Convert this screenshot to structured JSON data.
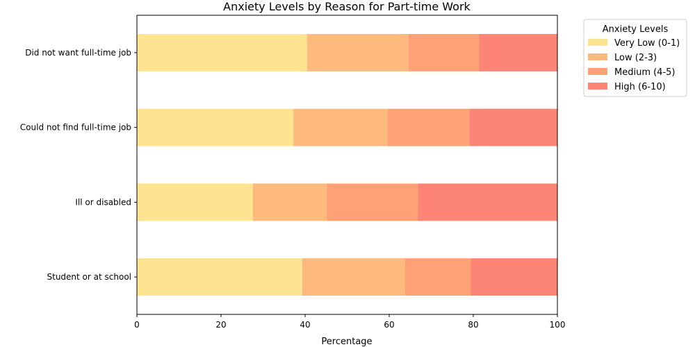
{
  "chart_data": {
    "type": "bar",
    "orientation": "horizontal",
    "stacked": true,
    "title": "Anxiety Levels by Reason for Part-time Work",
    "xlabel": "Percentage",
    "ylabel": "",
    "xlim": [
      0,
      100
    ],
    "xticks": [
      0,
      20,
      40,
      60,
      80,
      100
    ],
    "categories": [
      "Did not want full-time job",
      "Could not find full-time job",
      "Ill or disabled",
      "Student or at school"
    ],
    "legend_title": "Anxiety Levels",
    "legend_position": "outside-top-right",
    "grid": false,
    "series": [
      {
        "name": "Very Low (0-1)",
        "color": "#fee391",
        "values": [
          40.5,
          37.2,
          27.6,
          39.3
        ]
      },
      {
        "name": "Low (2-3)",
        "color": "#feb97d",
        "values": [
          24.1,
          22.4,
          17.6,
          24.5
        ]
      },
      {
        "name": "Medium (4-5)",
        "color": "#fea175",
        "values": [
          16.8,
          19.5,
          21.6,
          15.6
        ]
      },
      {
        "name": "High (6-10)",
        "color": "#fc8575",
        "values": [
          18.6,
          20.9,
          33.2,
          20.6
        ]
      }
    ]
  }
}
